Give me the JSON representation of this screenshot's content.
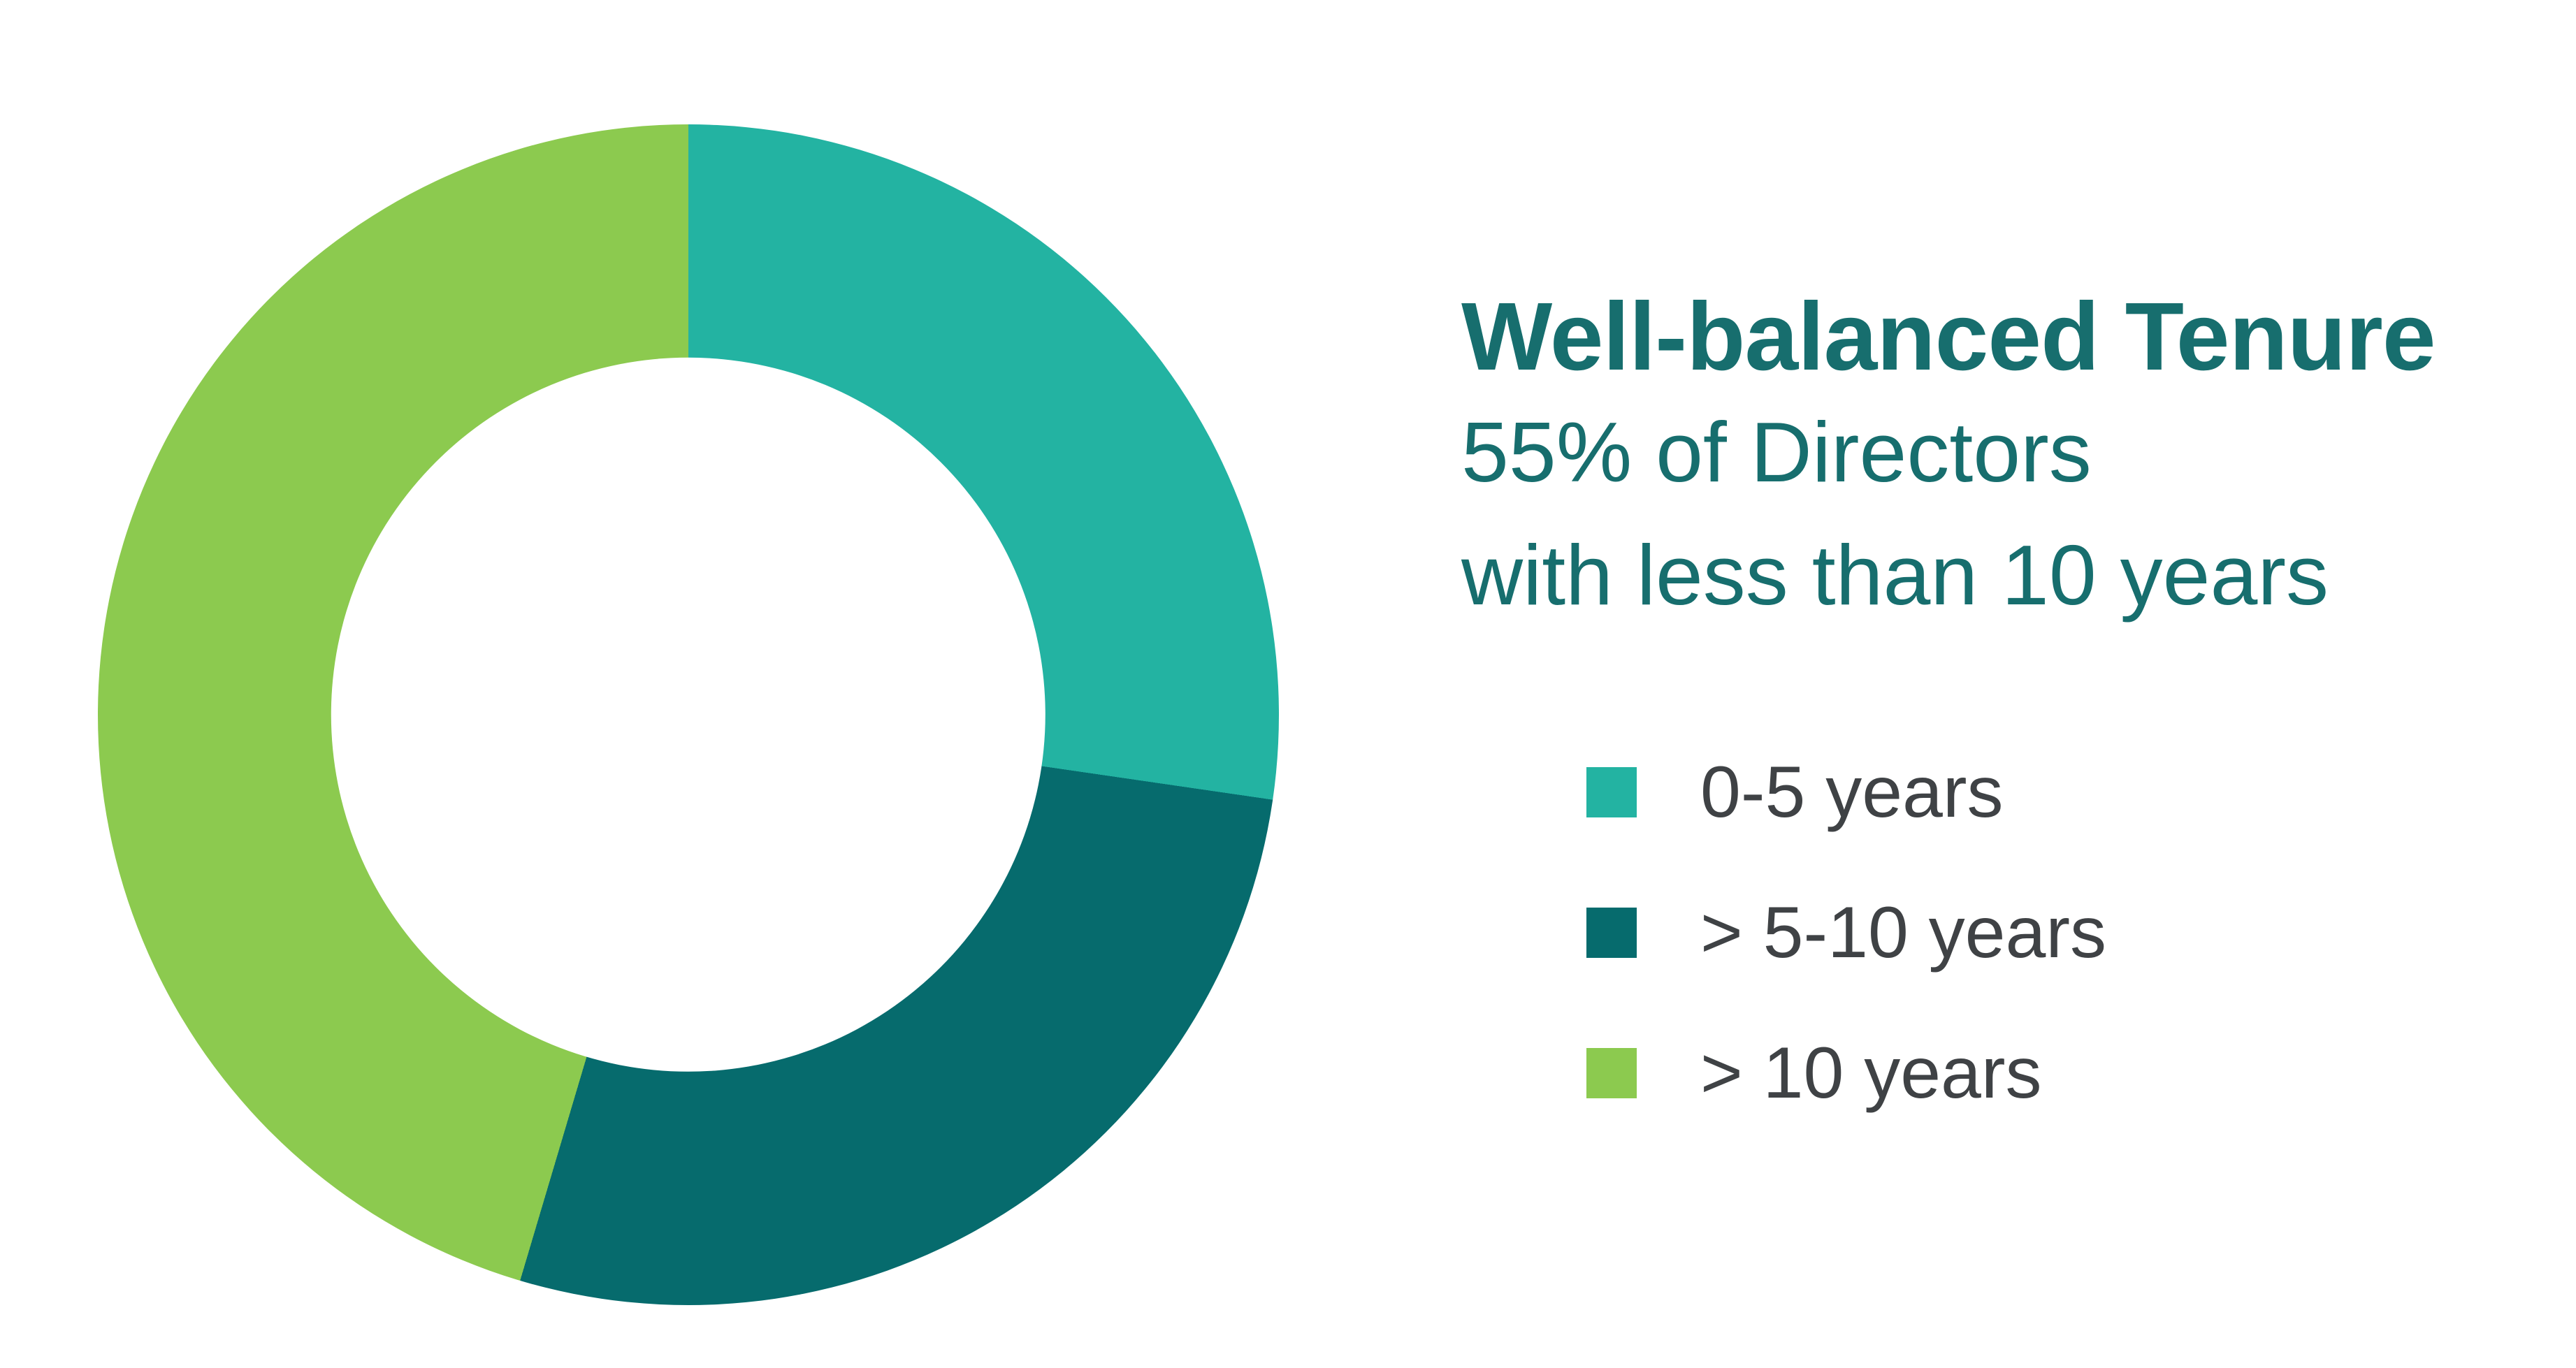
{
  "page": {
    "background_color": "#ffffff"
  },
  "headline": {
    "title": "Well-balanced Tenure",
    "subtitle_line1": "55% of Directors",
    "subtitle_line2": "with less than 10 years",
    "text_color": "#176E6E"
  },
  "legend": {
    "text_color": "#3F4245"
  },
  "chart_data": {
    "type": "pie",
    "variant": "donut",
    "title": "Well-balanced Tenure",
    "annotation": "55% of Directors with less than 10 years",
    "categories": [
      "0-5 years",
      "> 5-10 years",
      "> 10 years"
    ],
    "values": [
      27.3,
      27.3,
      45.4
    ],
    "unit": "percent of directors",
    "colors": [
      "#23B3A2",
      "#066B6D",
      "#8CCA4F"
    ],
    "start_angle_deg": 0,
    "direction": "clockwise",
    "hole_ratio": 0.605,
    "legend_position": "right",
    "data_labels": false,
    "derived_callout": "0-5 years (27.3%) + >5-10 years (27.3%) = 55% with less than 10 years; >10 years = 45.4%"
  }
}
